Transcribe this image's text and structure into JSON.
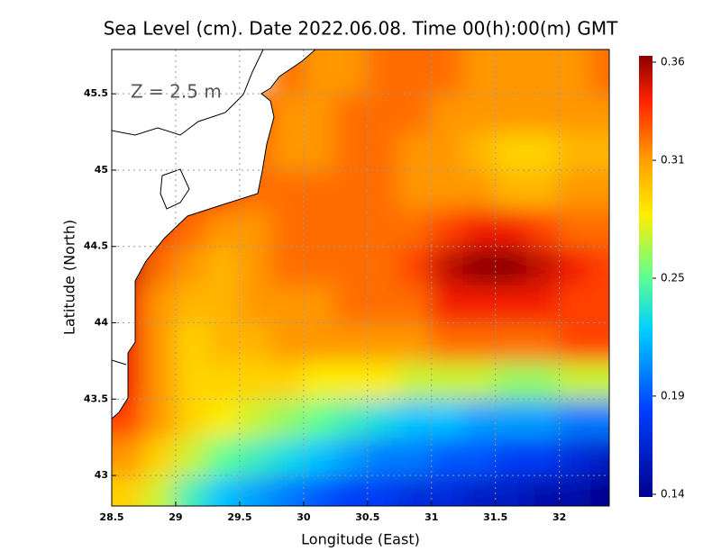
{
  "chart_data": {
    "type": "heatmap",
    "title": "Sea Level (cm). Date 2022.06.08. Time 00(h):00(m) GMT",
    "annotation": "Z = 2.5 m",
    "x_label": "Longitude (East)",
    "y_label": "Latitude (North)",
    "xlim": [
      28.5,
      32.39
    ],
    "ylim": [
      42.8,
      45.79
    ],
    "xticks": [
      28.5,
      29,
      29.5,
      30,
      30.5,
      31,
      31.5,
      32
    ],
    "yticks": [
      43,
      43.5,
      44,
      44.5,
      45,
      45.5
    ],
    "grid": true,
    "x": [
      28.625,
      28.875,
      29.125,
      29.375,
      29.625,
      29.875,
      30.125,
      30.375,
      30.625,
      30.875,
      31.125,
      31.375,
      31.625,
      31.875,
      32.125,
      32.375
    ],
    "y": [
      42.875,
      43.125,
      43.375,
      43.625,
      43.875,
      44.125,
      44.375,
      44.625,
      44.875,
      45.125,
      45.375,
      45.625
    ],
    "z": [
      [
        0.29,
        0.27,
        0.24,
        0.22,
        0.21,
        0.2,
        0.19,
        0.18,
        0.18,
        0.17,
        0.17,
        0.16,
        0.16,
        0.15,
        0.15,
        0.14
      ],
      [
        0.31,
        0.29,
        0.27,
        0.25,
        0.24,
        0.23,
        0.22,
        0.21,
        0.2,
        0.2,
        0.19,
        0.19,
        0.18,
        0.18,
        0.17,
        0.16
      ],
      [
        0.33,
        0.31,
        0.29,
        0.28,
        0.27,
        0.26,
        0.25,
        0.24,
        0.23,
        0.22,
        0.22,
        0.21,
        0.21,
        0.21,
        0.2,
        0.2
      ],
      [
        0.34,
        0.31,
        0.29,
        0.29,
        0.29,
        0.29,
        0.28,
        0.28,
        0.28,
        0.27,
        0.27,
        0.27,
        0.26,
        0.26,
        0.27,
        0.27
      ],
      [
        0.34,
        0.31,
        0.29,
        0.3,
        0.3,
        0.31,
        0.31,
        0.31,
        0.31,
        0.31,
        0.32,
        0.32,
        0.32,
        0.32,
        0.33,
        0.33
      ],
      [
        0.34,
        0.31,
        0.3,
        0.3,
        0.31,
        0.31,
        0.31,
        0.32,
        0.32,
        0.32,
        0.34,
        0.34,
        0.34,
        0.34,
        0.33,
        0.33
      ],
      [
        0.35,
        0.32,
        0.31,
        0.3,
        0.31,
        0.32,
        0.32,
        0.32,
        0.32,
        0.33,
        0.35,
        0.36,
        0.36,
        0.35,
        0.34,
        0.33
      ],
      [
        0.35,
        0.33,
        0.32,
        0.31,
        0.31,
        0.32,
        0.32,
        0.32,
        0.32,
        0.32,
        0.33,
        0.34,
        0.34,
        0.33,
        0.32,
        0.32
      ],
      [
        null,
        null,
        0.34,
        0.33,
        0.32,
        0.32,
        0.32,
        0.32,
        0.32,
        0.31,
        0.31,
        0.31,
        0.3,
        0.3,
        0.31,
        0.31
      ],
      [
        null,
        null,
        null,
        null,
        0.32,
        0.31,
        0.31,
        0.32,
        0.32,
        0.31,
        0.31,
        0.3,
        0.29,
        0.29,
        0.3,
        0.3
      ],
      [
        null,
        null,
        null,
        null,
        0.33,
        0.31,
        0.31,
        0.32,
        0.32,
        0.32,
        0.31,
        0.31,
        0.31,
        0.31,
        0.31,
        0.31
      ],
      [
        null,
        null,
        null,
        null,
        null,
        0.32,
        0.31,
        0.31,
        0.32,
        0.32,
        0.32,
        0.31,
        0.31,
        0.31,
        0.31,
        0.32
      ]
    ],
    "zlim": [
      0.14,
      0.36
    ],
    "zticks": [
      0.14,
      0.19,
      0.25,
      0.31,
      0.36
    ]
  }
}
